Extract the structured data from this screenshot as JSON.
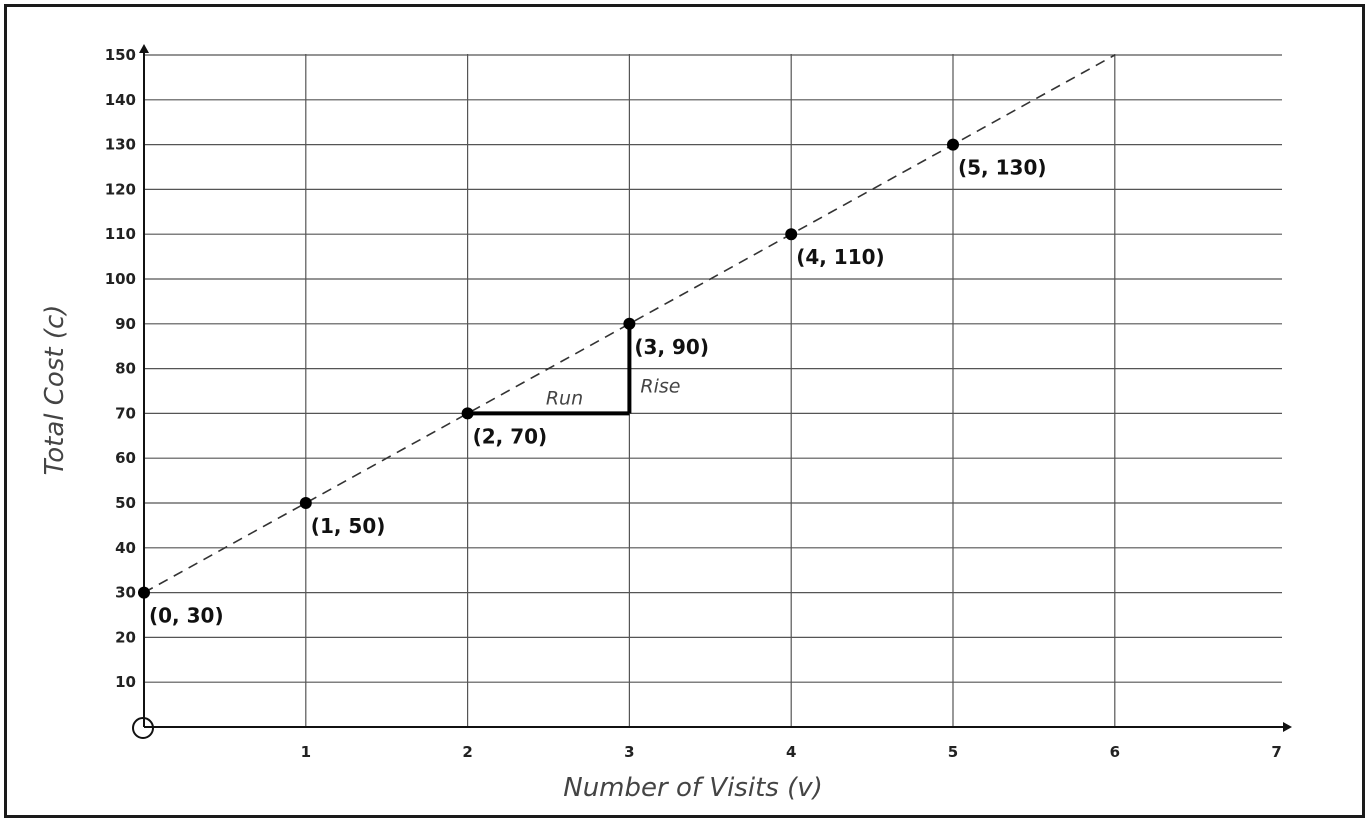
{
  "chart_data": {
    "type": "scatter",
    "title": "",
    "xlabel": "Number of Visits (v)",
    "ylabel": "Total Cost (c)",
    "xlim": [
      0,
      7
    ],
    "ylim": [
      0,
      150
    ],
    "x_ticks": [
      "1",
      "2",
      "3",
      "4",
      "5",
      "6",
      "7"
    ],
    "y_ticks": [
      "10",
      "20",
      "30",
      "40",
      "50",
      "60",
      "70",
      "80",
      "90",
      "100",
      "110",
      "120",
      "130",
      "140",
      "150"
    ],
    "grid": true,
    "origin_marker": "open circle",
    "points": [
      {
        "x": 0,
        "y": 30,
        "label": "(0, 30)"
      },
      {
        "x": 1,
        "y": 50,
        "label": "(1, 50)"
      },
      {
        "x": 2,
        "y": 70,
        "label": "(2, 70)"
      },
      {
        "x": 3,
        "y": 90,
        "label": "(3, 90)"
      },
      {
        "x": 4,
        "y": 110,
        "label": "(4, 110)"
      },
      {
        "x": 5,
        "y": 130,
        "label": "(5, 130)"
      }
    ],
    "trend_line": {
      "style": "dashed",
      "from": [
        0,
        30
      ],
      "to": [
        6,
        150
      ]
    },
    "annotations": {
      "run": {
        "text": "Run",
        "from": [
          2,
          70
        ],
        "to": [
          3,
          70
        ]
      },
      "rise": {
        "text": "Rise",
        "from": [
          3,
          70
        ],
        "to": [
          3,
          90
        ]
      }
    }
  }
}
